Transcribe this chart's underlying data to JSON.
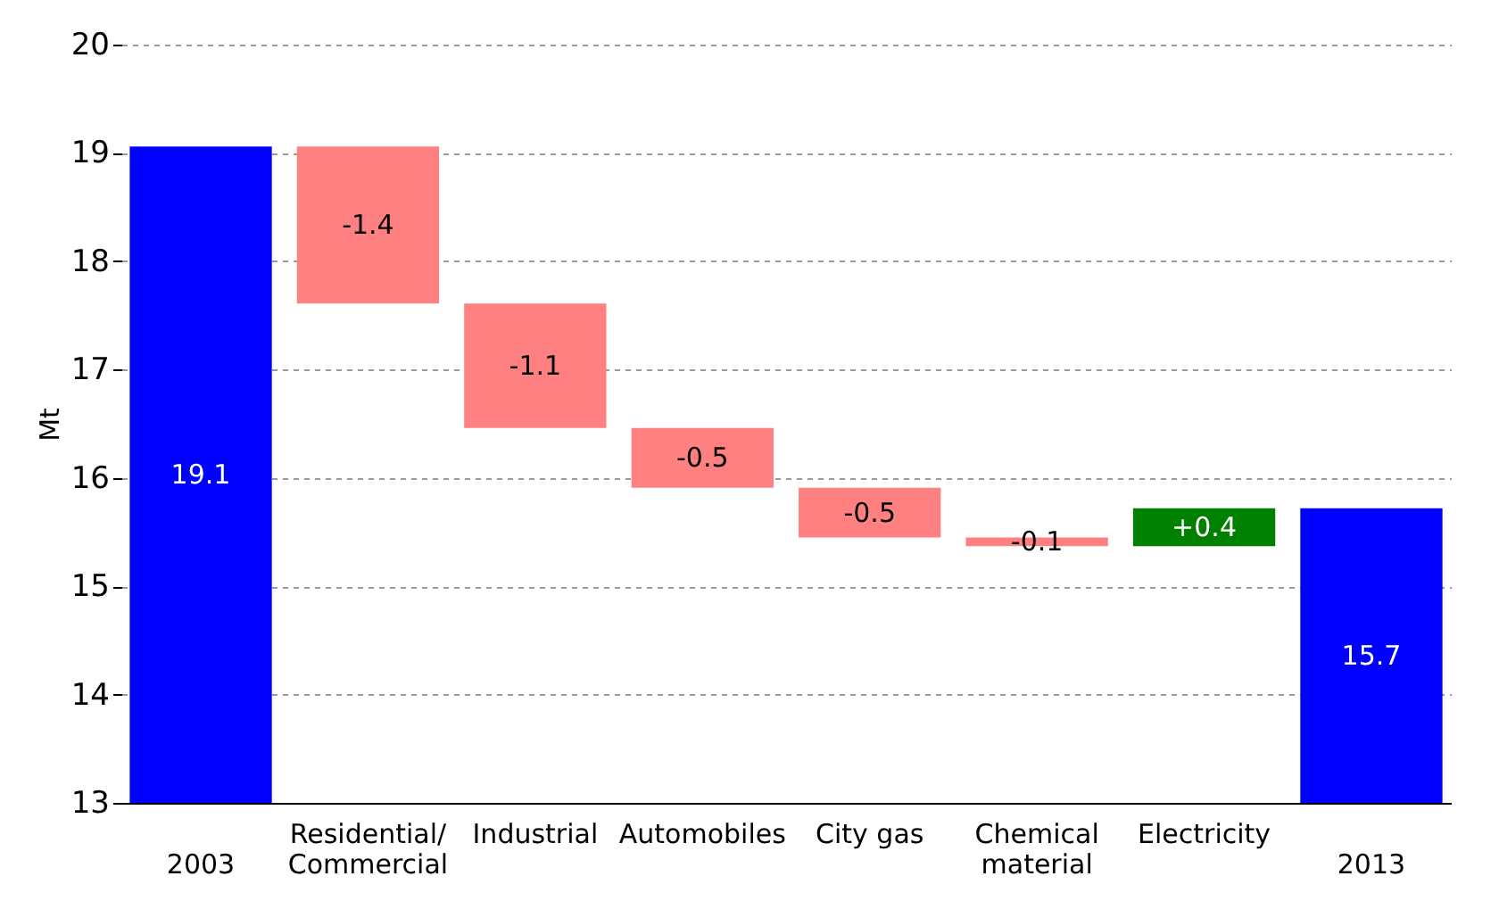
{
  "chart_data": {
    "type": "bar",
    "ylabel": "Mt",
    "categories": [
      "2003",
      "Residential/ Commercial",
      "Industrial",
      "Automobiles",
      "City gas",
      "Chemical material",
      "Electricity",
      "2013"
    ],
    "base": [
      13,
      19.06,
      17.61,
      16.46,
      15.91,
      15.45,
      15.37,
      13
    ],
    "values": [
      6.06,
      -1.45,
      -1.15,
      -0.55,
      -0.46,
      -0.08,
      0.35,
      2.72
    ],
    "colors": [
      "#0000ff",
      "#ff8080",
      "#ff8080",
      "#ff8080",
      "#ff8080",
      "#ff8080",
      "#008000",
      "#0000ff"
    ],
    "value_labels": [
      "19.1",
      "-1.4",
      "-1.1",
      "-0.5",
      "-0.5",
      "-0.1",
      "+0.4",
      "15.7"
    ],
    "ylim": [
      13,
      20
    ],
    "yticks": [
      13,
      14,
      15,
      16,
      17,
      18,
      19,
      20
    ],
    "grid": "y"
  }
}
